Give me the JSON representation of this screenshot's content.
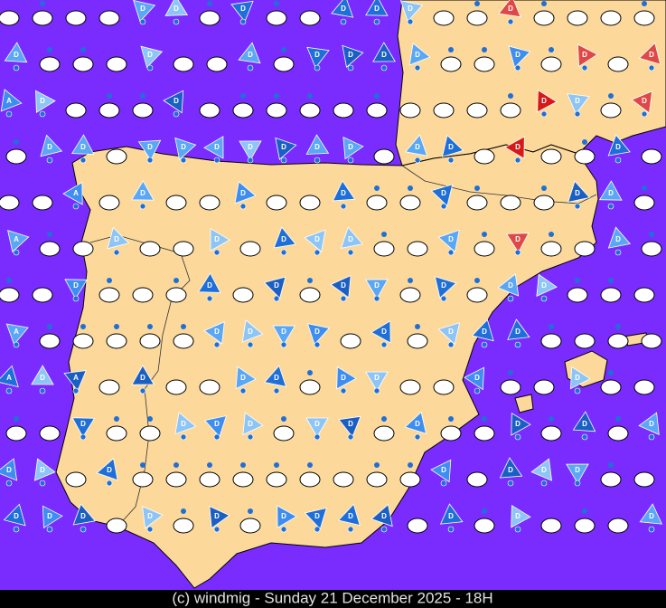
{
  "caption": "(c) windmig - Sunday 21 December 2025 - 18H",
  "symbol_labels": [
    "D",
    "A"
  ]
}
